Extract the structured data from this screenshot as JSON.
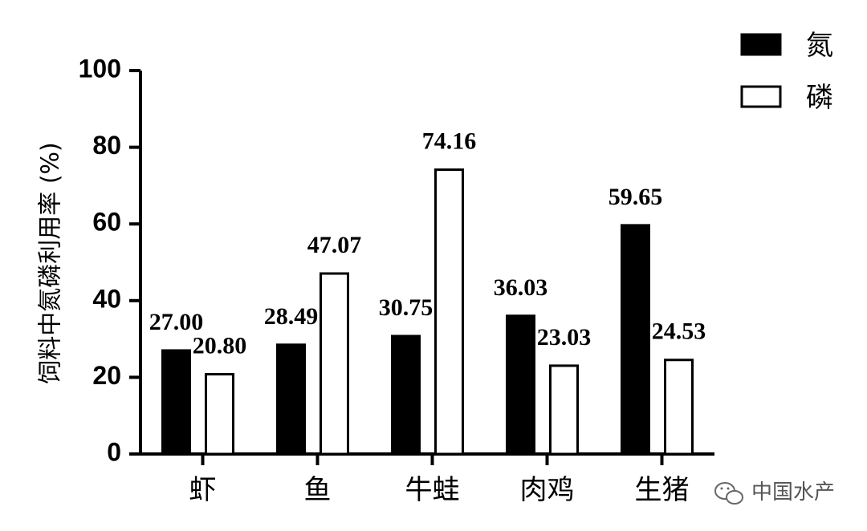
{
  "chart_data": {
    "type": "bar",
    "title": "",
    "xlabel": "",
    "ylabel": "饲料中氮磷利用率 (%)",
    "ylim": [
      0,
      100
    ],
    "yticks": [
      "0",
      "20",
      "40",
      "60",
      "80",
      "100"
    ],
    "categories": [
      "虾",
      "鱼",
      "牛蛙",
      "肉鸡",
      "生猪"
    ],
    "series": [
      {
        "name": "氮",
        "fill": "#000000",
        "values": [
          27.0,
          28.49,
          30.75,
          36.03,
          59.65
        ],
        "labels": [
          "27.00",
          "28.49",
          "30.75",
          "36.03",
          "59.65"
        ]
      },
      {
        "name": "磷",
        "fill": "#ffffff",
        "values": [
          20.8,
          47.07,
          74.16,
          23.03,
          24.53
        ],
        "labels": [
          "20.80",
          "47.07",
          "74.16",
          "23.03",
          "24.53"
        ]
      }
    ],
    "legend_position": "top-right",
    "grid": false
  },
  "watermark": {
    "text": "中国水产",
    "icon": "wechat-icon"
  }
}
